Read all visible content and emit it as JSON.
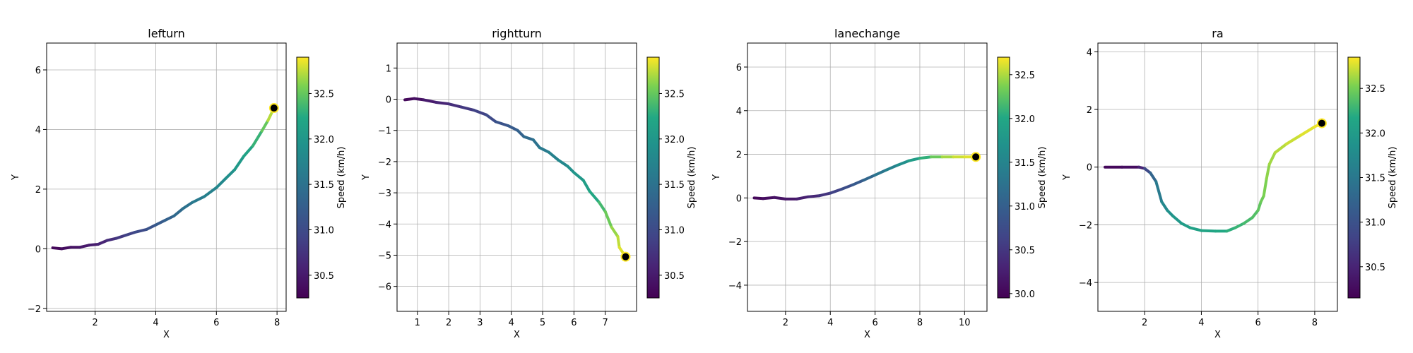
{
  "colormap": "viridis",
  "colors": {
    "end_marker_fill": "#000000",
    "end_marker_stroke": "#fde725",
    "grid": "#b0b0b0"
  },
  "chart_data": [
    {
      "type": "line",
      "title": "lefturn",
      "xlabel": "X",
      "ylabel": "Y",
      "colorbar_label": "Speed (km/h)",
      "xlim": [
        0.4,
        8.3
      ],
      "ylim": [
        -2.1,
        6.9
      ],
      "xticks": [
        2,
        4,
        6,
        8
      ],
      "yticks": [
        -2,
        0,
        2,
        4,
        6
      ],
      "clim": [
        30.25,
        32.9
      ],
      "cticks": [
        30.5,
        31.0,
        31.5,
        32.0,
        32.5
      ],
      "grid": true,
      "points": [
        {
          "x": 0.6,
          "y": 0.03,
          "speed": 30.3
        },
        {
          "x": 0.9,
          "y": 0.0,
          "speed": 30.35
        },
        {
          "x": 1.2,
          "y": 0.05,
          "speed": 30.4
        },
        {
          "x": 1.5,
          "y": 0.05,
          "speed": 30.45
        },
        {
          "x": 1.8,
          "y": 0.12,
          "speed": 30.5
        },
        {
          "x": 2.1,
          "y": 0.15,
          "speed": 30.55
        },
        {
          "x": 2.4,
          "y": 0.28,
          "speed": 30.65
        },
        {
          "x": 2.7,
          "y": 0.35,
          "speed": 30.75
        },
        {
          "x": 3.0,
          "y": 0.45,
          "speed": 30.85
        },
        {
          "x": 3.3,
          "y": 0.55,
          "speed": 30.95
        },
        {
          "x": 3.7,
          "y": 0.65,
          "speed": 31.05
        },
        {
          "x": 4.0,
          "y": 0.8,
          "speed": 31.15
        },
        {
          "x": 4.3,
          "y": 0.95,
          "speed": 31.25
        },
        {
          "x": 4.6,
          "y": 1.1,
          "speed": 31.35
        },
        {
          "x": 4.9,
          "y": 1.35,
          "speed": 31.45
        },
        {
          "x": 5.2,
          "y": 1.55,
          "speed": 31.55
        },
        {
          "x": 5.6,
          "y": 1.75,
          "speed": 31.65
        },
        {
          "x": 6.0,
          "y": 2.05,
          "speed": 31.75
        },
        {
          "x": 6.3,
          "y": 2.35,
          "speed": 31.85
        },
        {
          "x": 6.6,
          "y": 2.65,
          "speed": 31.95
        },
        {
          "x": 6.9,
          "y": 3.1,
          "speed": 32.1
        },
        {
          "x": 7.2,
          "y": 3.45,
          "speed": 32.25
        },
        {
          "x": 7.5,
          "y": 3.95,
          "speed": 32.4
        },
        {
          "x": 7.7,
          "y": 4.3,
          "speed": 32.6
        },
        {
          "x": 7.9,
          "y": 4.72,
          "speed": 32.85
        }
      ],
      "end_point": {
        "x": 7.9,
        "y": 4.72
      }
    },
    {
      "type": "line",
      "title": "rightturn",
      "xlabel": "X",
      "ylabel": "Y",
      "colorbar_label": "Speed (km/h)",
      "xlim": [
        0.35,
        8.0
      ],
      "ylim": [
        -6.8,
        1.8
      ],
      "xticks": [
        1,
        2,
        3,
        4,
        5,
        6,
        7
      ],
      "yticks": [
        -6,
        -5,
        -4,
        -3,
        -2,
        -1,
        0,
        1
      ],
      "clim": [
        30.25,
        32.9
      ],
      "cticks": [
        30.5,
        31.0,
        31.5,
        32.0,
        32.5
      ],
      "grid": true,
      "points": [
        {
          "x": 0.6,
          "y": -0.02,
          "speed": 30.3
        },
        {
          "x": 0.9,
          "y": 0.02,
          "speed": 30.35
        },
        {
          "x": 1.2,
          "y": -0.02,
          "speed": 30.45
        },
        {
          "x": 1.6,
          "y": -0.1,
          "speed": 30.55
        },
        {
          "x": 2.0,
          "y": -0.15,
          "speed": 30.65
        },
        {
          "x": 2.4,
          "y": -0.25,
          "speed": 30.75
        },
        {
          "x": 2.8,
          "y": -0.35,
          "speed": 30.85
        },
        {
          "x": 3.2,
          "y": -0.5,
          "speed": 30.95
        },
        {
          "x": 3.5,
          "y": -0.72,
          "speed": 31.05
        },
        {
          "x": 3.9,
          "y": -0.85,
          "speed": 31.15
        },
        {
          "x": 4.2,
          "y": -1.0,
          "speed": 31.25
        },
        {
          "x": 4.4,
          "y": -1.2,
          "speed": 31.35
        },
        {
          "x": 4.7,
          "y": -1.3,
          "speed": 31.45
        },
        {
          "x": 4.9,
          "y": -1.55,
          "speed": 31.55
        },
        {
          "x": 5.2,
          "y": -1.7,
          "speed": 31.65
        },
        {
          "x": 5.5,
          "y": -1.95,
          "speed": 31.75
        },
        {
          "x": 5.8,
          "y": -2.15,
          "speed": 31.85
        },
        {
          "x": 6.0,
          "y": -2.35,
          "speed": 31.95
        },
        {
          "x": 6.3,
          "y": -2.6,
          "speed": 32.05
        },
        {
          "x": 6.5,
          "y": -2.95,
          "speed": 32.15
        },
        {
          "x": 6.8,
          "y": -3.3,
          "speed": 32.3
        },
        {
          "x": 7.0,
          "y": -3.6,
          "speed": 32.45
        },
        {
          "x": 7.2,
          "y": -4.1,
          "speed": 32.6
        },
        {
          "x": 7.4,
          "y": -4.4,
          "speed": 32.7
        },
        {
          "x": 7.45,
          "y": -4.75,
          "speed": 32.8
        },
        {
          "x": 7.65,
          "y": -5.05,
          "speed": 32.85
        }
      ],
      "end_point": {
        "x": 7.65,
        "y": -5.05
      }
    },
    {
      "type": "line",
      "title": "lanechange",
      "xlabel": "X",
      "ylabel": "Y",
      "colorbar_label": "Speed (km/h)",
      "xlim": [
        0.3,
        11.0
      ],
      "ylim": [
        -5.2,
        7.1
      ],
      "xticks": [
        2,
        4,
        6,
        8,
        10
      ],
      "yticks": [
        -4,
        -2,
        0,
        2,
        4,
        6
      ],
      "clim": [
        29.95,
        32.7
      ],
      "cticks": [
        30.0,
        30.5,
        31.0,
        31.5,
        32.0,
        32.5
      ],
      "grid": true,
      "points": [
        {
          "x": 0.6,
          "y": 0.0,
          "speed": 30.0
        },
        {
          "x": 1.0,
          "y": -0.03,
          "speed": 30.05
        },
        {
          "x": 1.5,
          "y": 0.02,
          "speed": 30.1
        },
        {
          "x": 2.0,
          "y": -0.05,
          "speed": 30.15
        },
        {
          "x": 2.5,
          "y": -0.05,
          "speed": 30.2
        },
        {
          "x": 3.0,
          "y": 0.05,
          "speed": 30.3
        },
        {
          "x": 3.5,
          "y": 0.1,
          "speed": 30.4
        },
        {
          "x": 4.0,
          "y": 0.22,
          "speed": 30.55
        },
        {
          "x": 4.5,
          "y": 0.4,
          "speed": 30.7
        },
        {
          "x": 5.0,
          "y": 0.6,
          "speed": 30.85
        },
        {
          "x": 5.5,
          "y": 0.82,
          "speed": 31.0
        },
        {
          "x": 6.0,
          "y": 1.05,
          "speed": 31.2
        },
        {
          "x": 6.5,
          "y": 1.28,
          "speed": 31.4
        },
        {
          "x": 7.0,
          "y": 1.5,
          "speed": 31.55
        },
        {
          "x": 7.5,
          "y": 1.7,
          "speed": 31.75
        },
        {
          "x": 8.0,
          "y": 1.82,
          "speed": 31.95
        },
        {
          "x": 8.5,
          "y": 1.88,
          "speed": 32.2
        },
        {
          "x": 9.0,
          "y": 1.88,
          "speed": 32.4
        },
        {
          "x": 9.5,
          "y": 1.88,
          "speed": 32.55
        },
        {
          "x": 10.0,
          "y": 1.88,
          "speed": 32.6
        },
        {
          "x": 10.5,
          "y": 1.88,
          "speed": 32.65
        }
      ],
      "end_point": {
        "x": 10.5,
        "y": 1.88
      }
    },
    {
      "type": "line",
      "title": "ra",
      "xlabel": "X",
      "ylabel": "Y",
      "colorbar_label": "Speed (km/h)",
      "xlim": [
        0.35,
        8.8
      ],
      "ylim": [
        -5.0,
        4.3
      ],
      "xticks": [
        2,
        4,
        6,
        8
      ],
      "yticks": [
        -4,
        -2,
        0,
        2,
        4
      ],
      "clim": [
        30.15,
        32.85
      ],
      "cticks": [
        30.5,
        31.0,
        31.5,
        32.0,
        32.5
      ],
      "grid": true,
      "points": [
        {
          "x": 0.6,
          "y": 0.0,
          "speed": 30.2
        },
        {
          "x": 1.2,
          "y": 0.0,
          "speed": 30.25
        },
        {
          "x": 1.8,
          "y": 0.0,
          "speed": 30.3
        },
        {
          "x": 2.0,
          "y": -0.05,
          "speed": 30.7
        },
        {
          "x": 2.2,
          "y": -0.2,
          "speed": 31.1
        },
        {
          "x": 2.4,
          "y": -0.5,
          "speed": 31.4
        },
        {
          "x": 2.6,
          "y": -1.2,
          "speed": 31.65
        },
        {
          "x": 2.8,
          "y": -1.5,
          "speed": 31.8
        },
        {
          "x": 3.0,
          "y": -1.7,
          "speed": 31.9
        },
        {
          "x": 3.3,
          "y": -1.95,
          "speed": 32.0
        },
        {
          "x": 3.6,
          "y": -2.1,
          "speed": 32.05
        },
        {
          "x": 4.0,
          "y": -2.2,
          "speed": 32.1
        },
        {
          "x": 4.5,
          "y": -2.22,
          "speed": 32.15
        },
        {
          "x": 4.9,
          "y": -2.22,
          "speed": 32.2
        },
        {
          "x": 5.2,
          "y": -2.1,
          "speed": 32.25
        },
        {
          "x": 5.5,
          "y": -1.95,
          "speed": 32.3
        },
        {
          "x": 5.8,
          "y": -1.75,
          "speed": 32.35
        },
        {
          "x": 6.0,
          "y": -1.5,
          "speed": 32.4
        },
        {
          "x": 6.1,
          "y": -1.2,
          "speed": 32.45
        },
        {
          "x": 6.2,
          "y": -1.0,
          "speed": 32.5
        },
        {
          "x": 6.3,
          "y": -0.4,
          "speed": 32.55
        },
        {
          "x": 6.4,
          "y": 0.1,
          "speed": 32.6
        },
        {
          "x": 6.6,
          "y": 0.5,
          "speed": 32.65
        },
        {
          "x": 7.0,
          "y": 0.8,
          "speed": 32.7
        },
        {
          "x": 7.5,
          "y": 1.1,
          "speed": 32.75
        },
        {
          "x": 8.0,
          "y": 1.4,
          "speed": 32.8
        },
        {
          "x": 8.25,
          "y": 1.52,
          "speed": 32.82
        }
      ],
      "end_point": {
        "x": 8.25,
        "y": 1.52
      }
    }
  ]
}
